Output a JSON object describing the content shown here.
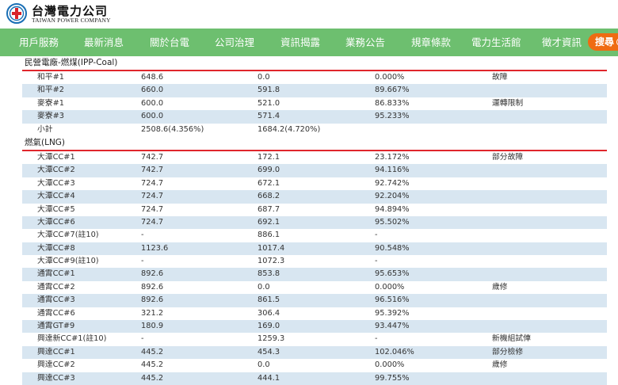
{
  "header": {
    "logo_title": "台灣電力公司",
    "logo_subtitle": "TAIWAN POWER COMPANY",
    "colors": {
      "nav_bg": "#6dbf6f",
      "search_bg": "#ef6b12",
      "section_rule": "#e0262c",
      "row_shade": "#d8e6f1"
    }
  },
  "nav": {
    "items": [
      {
        "label": "用戶服務"
      },
      {
        "label": "最新消息"
      },
      {
        "label": "關於台電"
      },
      {
        "label": "公司治理"
      },
      {
        "label": "資訊揭露"
      },
      {
        "label": "業務公告"
      },
      {
        "label": "規章條款"
      },
      {
        "label": "電力生活館"
      },
      {
        "label": "徵才資訊"
      }
    ],
    "search_label": "搜尋",
    "search_icon": "search-icon"
  },
  "sections": [
    {
      "title": "民營電廠-燃煤(IPP-Coal)",
      "rows": [
        {
          "name": "和平#1",
          "capacity": "648.6",
          "net": "0.0",
          "ratio": "0.000%",
          "note": "故障"
        },
        {
          "name": "和平#2",
          "capacity": "660.0",
          "net": "591.8",
          "ratio": "89.667%",
          "note": ""
        },
        {
          "name": "麥寮#1",
          "capacity": "600.0",
          "net": "521.0",
          "ratio": "86.833%",
          "note": "運轉限制"
        },
        {
          "name": "麥寮#3",
          "capacity": "600.0",
          "net": "571.4",
          "ratio": "95.233%",
          "note": ""
        },
        {
          "name": "小計",
          "capacity": "2508.6(4.356%)",
          "net": "1684.2(4.720%)",
          "ratio": "",
          "note": ""
        }
      ]
    },
    {
      "title": "燃氣(LNG)",
      "rows": [
        {
          "name": "大潭CC#1",
          "capacity": "742.7",
          "net": "172.1",
          "ratio": "23.172%",
          "note": "部分故障"
        },
        {
          "name": "大潭CC#2",
          "capacity": "742.7",
          "net": "699.0",
          "ratio": "94.116%",
          "note": ""
        },
        {
          "name": "大潭CC#3",
          "capacity": "724.7",
          "net": "672.1",
          "ratio": "92.742%",
          "note": ""
        },
        {
          "name": "大潭CC#4",
          "capacity": "724.7",
          "net": "668.2",
          "ratio": "92.204%",
          "note": ""
        },
        {
          "name": "大潭CC#5",
          "capacity": "724.7",
          "net": "687.7",
          "ratio": "94.894%",
          "note": ""
        },
        {
          "name": "大潭CC#6",
          "capacity": "724.7",
          "net": "692.1",
          "ratio": "95.502%",
          "note": ""
        },
        {
          "name": "大潭CC#7(註10)",
          "capacity": "-",
          "net": "886.1",
          "ratio": "-",
          "note": ""
        },
        {
          "name": "大潭CC#8",
          "capacity": "1123.6",
          "net": "1017.4",
          "ratio": "90.548%",
          "note": ""
        },
        {
          "name": "大潭CC#9(註10)",
          "capacity": "-",
          "net": "1072.3",
          "ratio": "-",
          "note": ""
        },
        {
          "name": "通霄CC#1",
          "capacity": "892.6",
          "net": "853.8",
          "ratio": "95.653%",
          "note": ""
        },
        {
          "name": "通霄CC#2",
          "capacity": "892.6",
          "net": "0.0",
          "ratio": "0.000%",
          "note": "歲修"
        },
        {
          "name": "通霄CC#3",
          "capacity": "892.6",
          "net": "861.5",
          "ratio": "96.516%",
          "note": ""
        },
        {
          "name": "通霄CC#6",
          "capacity": "321.2",
          "net": "306.4",
          "ratio": "95.392%",
          "note": ""
        },
        {
          "name": "通霄GT#9",
          "capacity": "180.9",
          "net": "169.0",
          "ratio": "93.447%",
          "note": ""
        },
        {
          "name": "興達新CC#1(註10)",
          "capacity": "-",
          "net": "1259.3",
          "ratio": "-",
          "note": "新機組試俥"
        },
        {
          "name": "興達CC#1",
          "capacity": "445.2",
          "net": "454.3",
          "ratio": "102.046%",
          "note": "部分檢修"
        },
        {
          "name": "興達CC#2",
          "capacity": "445.2",
          "net": "0.0",
          "ratio": "0.000%",
          "note": "歲修"
        },
        {
          "name": "興達CC#3",
          "capacity": "445.2",
          "net": "444.1",
          "ratio": "99.755%",
          "note": ""
        }
      ]
    }
  ]
}
